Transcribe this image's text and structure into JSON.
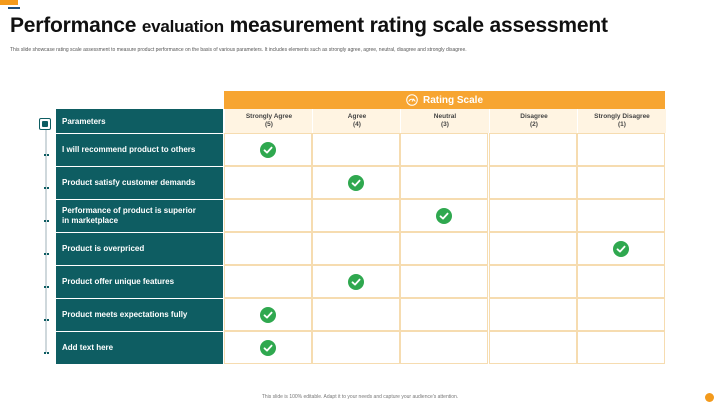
{
  "header": {
    "title_part1": "Performance",
    "title_part2": "evaluation",
    "title_part3": "measurement rating scale assessment",
    "subtitle": "This slide showcase rating scale assessment to measure product performance on the basis of various parameters. It includes elements such as strongly agree, agree, neutral, disagree and strongly disagree."
  },
  "table": {
    "rating_scale_label": "Rating Scale",
    "parameters_label": "Parameters",
    "columns": [
      {
        "label": "Strongly Agree",
        "score": "(5)"
      },
      {
        "label": "Agree",
        "score": "(4)"
      },
      {
        "label": "Neutral",
        "score": "(3)"
      },
      {
        "label": "Disagree",
        "score": "(2)"
      },
      {
        "label": "Strongly Disagree",
        "score": "(1)"
      }
    ],
    "rows": [
      {
        "label": "I will recommend product to others",
        "rating_col": 0
      },
      {
        "label": "Product satisfy customer demands",
        "rating_col": 1
      },
      {
        "label": "Performance of product is superior in marketplace",
        "rating_col": 2
      },
      {
        "label": "Product is overpriced",
        "rating_col": 4
      },
      {
        "label": "Product offer unique features",
        "rating_col": 1
      },
      {
        "label": "Product meets expectations fully",
        "rating_col": 0
      },
      {
        "label": "Add text here",
        "rating_col": 0
      }
    ]
  },
  "footer": {
    "text": "This slide is 100% editable. Adapt it to your needs and capture your audience's attention."
  },
  "colors": {
    "accent": "#f7a531",
    "teal": "#0e5d62",
    "check": "#2fa84f"
  },
  "icons": {
    "rating_scale": "gauge-icon",
    "check": "check-circle-icon"
  }
}
